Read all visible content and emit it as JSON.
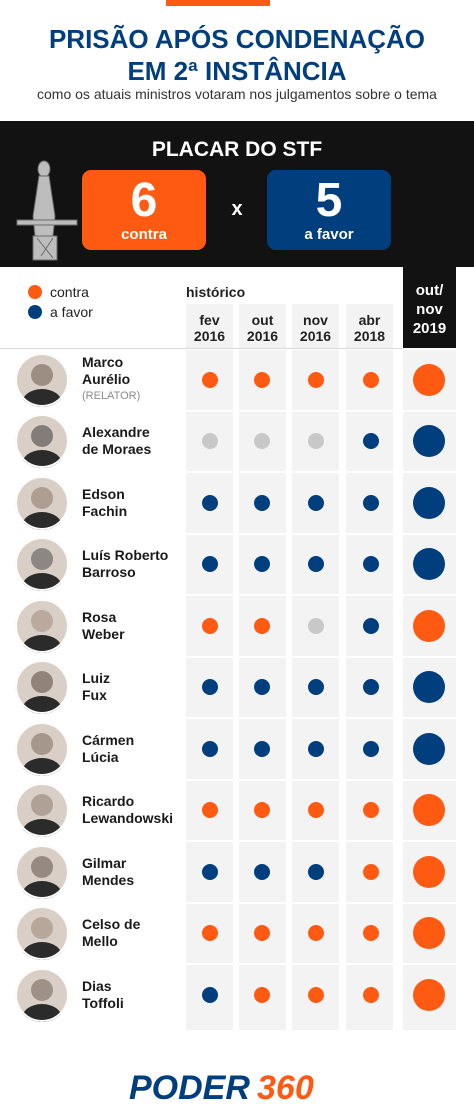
{
  "header": {
    "title_line1": "PRISÃO APÓS CONDENAÇÃO",
    "title_line2": "EM 2ª INSTÂNCIA",
    "subtitle": "como os atuais ministros votaram nos julgamentos sobre o tema"
  },
  "scoreboard": {
    "title": "PLACAR DO STF",
    "contra_count": "6",
    "contra_label": "contra",
    "separator": "x",
    "favor_count": "5",
    "favor_label": "a favor"
  },
  "legend": {
    "contra": "contra",
    "favor": "a favor",
    "historico": "histórico"
  },
  "columns": {
    "history": [
      {
        "line1": "fev",
        "line2": "2016"
      },
      {
        "line1": "out",
        "line2": "2016"
      },
      {
        "line1": "nov",
        "line2": "2016"
      },
      {
        "line1": "abr",
        "line2": "2018"
      }
    ],
    "current": {
      "line1": "out/",
      "line2": "nov",
      "line3": "2019"
    }
  },
  "colors": {
    "contra": "#ff5a12",
    "favor": "#003e7e",
    "absent": "#c8c8c8"
  },
  "ministers": [
    {
      "line1": "Marco",
      "line2": "Aurélio",
      "role": "(RELATOR)",
      "votes": [
        "contra",
        "contra",
        "contra",
        "contra"
      ],
      "current": "contra",
      "icon": "avatar-photo"
    },
    {
      "line1": "Alexandre",
      "line2": "de Moraes",
      "role": "",
      "votes": [
        "absent",
        "absent",
        "absent",
        "favor"
      ],
      "current": "favor",
      "icon": "avatar-photo"
    },
    {
      "line1": "Edson",
      "line2": "Fachin",
      "role": "",
      "votes": [
        "favor",
        "favor",
        "favor",
        "favor"
      ],
      "current": "favor",
      "icon": "avatar-photo"
    },
    {
      "line1": "Luís Roberto",
      "line2": "Barroso",
      "role": "",
      "votes": [
        "favor",
        "favor",
        "favor",
        "favor"
      ],
      "current": "favor",
      "icon": "avatar-photo"
    },
    {
      "line1": "Rosa",
      "line2": "Weber",
      "role": "",
      "votes": [
        "contra",
        "contra",
        "absent",
        "favor"
      ],
      "current": "contra",
      "icon": "avatar-photo"
    },
    {
      "line1": "Luiz",
      "line2": "Fux",
      "role": "",
      "votes": [
        "favor",
        "favor",
        "favor",
        "favor"
      ],
      "current": "favor",
      "icon": "avatar-photo"
    },
    {
      "line1": "Cármen",
      "line2": "Lúcia",
      "role": "",
      "votes": [
        "favor",
        "favor",
        "favor",
        "favor"
      ],
      "current": "favor",
      "icon": "avatar-photo"
    },
    {
      "line1": "Ricardo",
      "line2": "Lewandowski",
      "role": "",
      "votes": [
        "contra",
        "contra",
        "contra",
        "contra"
      ],
      "current": "contra",
      "icon": "avatar-photo"
    },
    {
      "line1": "Gilmar",
      "line2": "Mendes",
      "role": "",
      "votes": [
        "favor",
        "favor",
        "favor",
        "contra"
      ],
      "current": "contra",
      "icon": "avatar-photo"
    },
    {
      "line1": "Celso de",
      "line2": "Mello",
      "role": "",
      "votes": [
        "contra",
        "contra",
        "contra",
        "contra"
      ],
      "current": "contra",
      "icon": "avatar-photo"
    },
    {
      "line1": "Dias",
      "line2": "Toffoli",
      "role": "",
      "votes": [
        "favor",
        "contra",
        "contra",
        "contra"
      ],
      "current": "contra",
      "icon": "avatar-photo"
    }
  ],
  "footer": {
    "logo_word": "PODER",
    "logo_number": "360"
  }
}
